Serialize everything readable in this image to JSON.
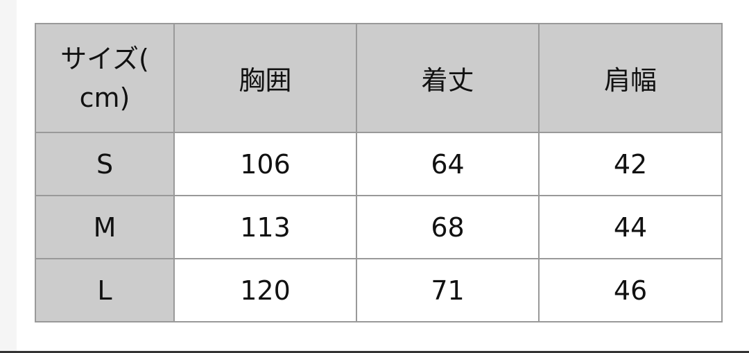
{
  "table": {
    "headers": [
      "サイズ(cm)",
      "胸囲",
      "着丈",
      "肩幅"
    ],
    "header_first_lines": [
      "サイズ(",
      "cm)"
    ],
    "rows": [
      {
        "size": "S",
        "values": [
          "106",
          "64",
          "42"
        ]
      },
      {
        "size": "M",
        "values": [
          "113",
          "68",
          "44"
        ]
      },
      {
        "size": "L",
        "values": [
          "120",
          "71",
          "46"
        ]
      }
    ]
  },
  "colors": {
    "header_bg": "#cccccc",
    "border": "#999999"
  }
}
